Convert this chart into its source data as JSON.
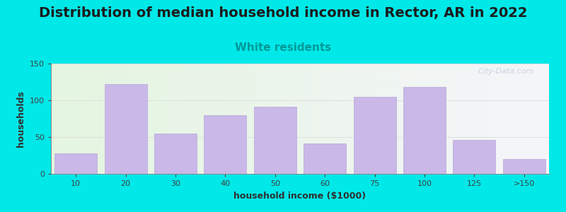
{
  "title": "Distribution of median household income in Rector, AR in 2022",
  "subtitle": "White residents",
  "xlabel": "household income ($1000)",
  "ylabel": "households",
  "bar_labels": [
    "10",
    "20",
    "30",
    "40",
    "50",
    "60",
    "75",
    "100",
    "125",
    ">150"
  ],
  "bar_values": [
    28,
    122,
    55,
    80,
    91,
    41,
    105,
    118,
    46,
    20
  ],
  "bar_color": "#c9b8e8",
  "bar_edge_color": "#b8a8d8",
  "ylim": [
    0,
    150
  ],
  "yticks": [
    0,
    50,
    100,
    150
  ],
  "background_color": "#00e8e8",
  "plot_bg_left": "#e4f5e0",
  "plot_bg_right": "#f5f5fa",
  "title_fontsize": 14,
  "subtitle_fontsize": 11,
  "subtitle_color": "#009999",
  "axis_label_fontsize": 9,
  "tick_label_fontsize": 8,
  "watermark_text": "City-Data.com",
  "watermark_color": "#c0cdd8"
}
